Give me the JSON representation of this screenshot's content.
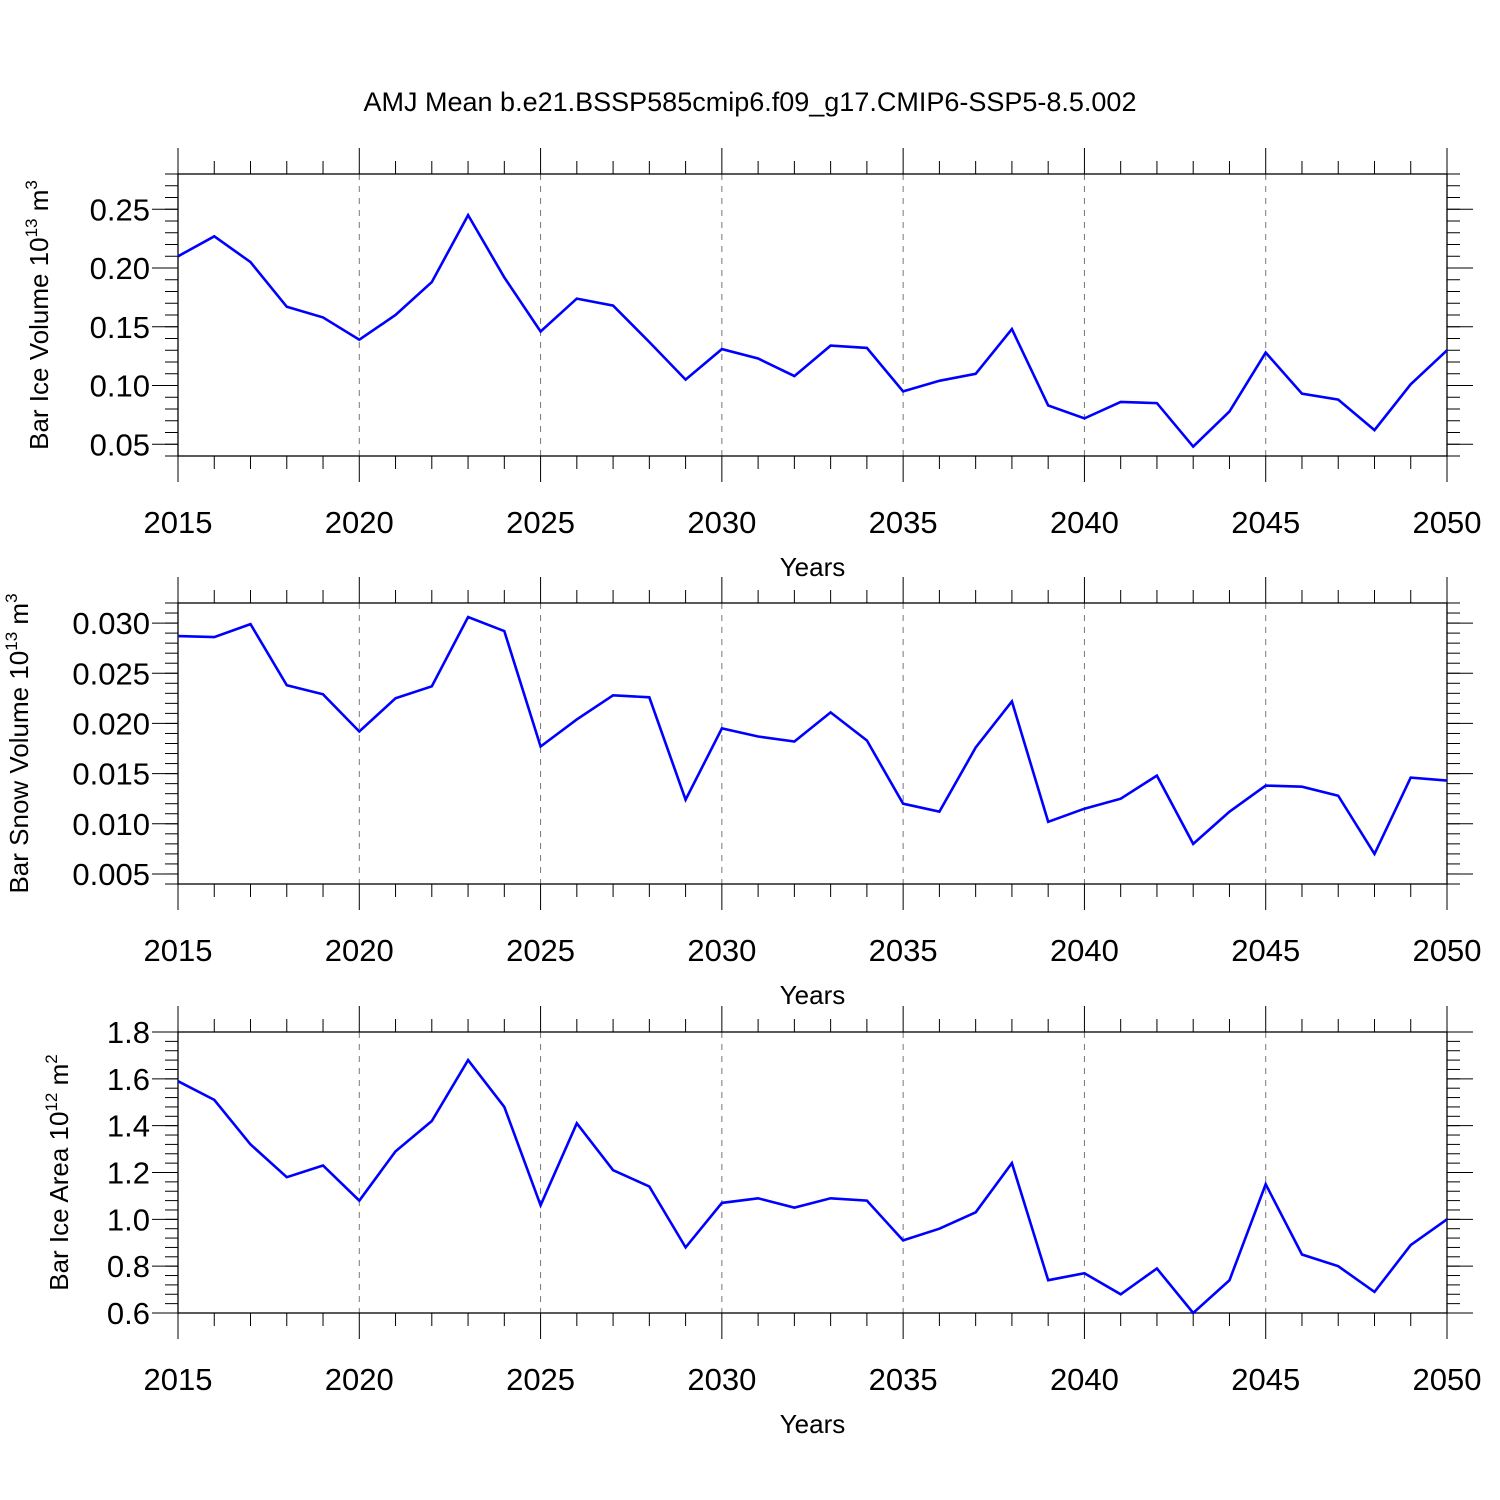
{
  "title": "AMJ Mean b.e21.BSSP585cmip6.f09_g17.CMIP6-SSP5-8.5.002",
  "colors": {
    "line": "#0000ff",
    "axis": "#000000",
    "grid": "#777777"
  },
  "chart_data": [
    {
      "type": "line",
      "xlabel": "Years",
      "ylabel": {
        "text": "Bar Ice Volume 10",
        "sup": "13",
        "unit": " m",
        "unit_sup": "3"
      },
      "xlim": [
        2015,
        2050
      ],
      "ylim": [
        0.04,
        0.28
      ],
      "xticks": [
        2015,
        2020,
        2025,
        2030,
        2035,
        2040,
        2045,
        2050
      ],
      "xtick_labels": [
        "2015",
        "2020",
        "2025",
        "2030",
        "2035",
        "2040",
        "2045",
        "2050"
      ],
      "yticks": [
        0.05,
        0.1,
        0.15,
        0.2,
        0.25
      ],
      "ytick_labels": [
        "0.05",
        "0.10",
        "0.15",
        "0.20",
        "0.25"
      ],
      "grid": "vertical dashed at major x ticks",
      "x": [
        2015,
        2016,
        2017,
        2018,
        2019,
        2020,
        2021,
        2022,
        2023,
        2024,
        2025,
        2026,
        2027,
        2028,
        2029,
        2030,
        2031,
        2032,
        2033,
        2034,
        2035,
        2036,
        2037,
        2038,
        2039,
        2040,
        2041,
        2042,
        2043,
        2044,
        2045,
        2046,
        2047,
        2048,
        2049,
        2050
      ],
      "values": [
        0.21,
        0.227,
        0.205,
        0.167,
        0.158,
        0.139,
        0.16,
        0.188,
        0.245,
        0.192,
        0.146,
        0.174,
        0.168,
        0.137,
        0.105,
        0.131,
        0.123,
        0.108,
        0.134,
        0.132,
        0.095,
        0.104,
        0.11,
        0.148,
        0.083,
        0.072,
        0.086,
        0.085,
        0.048,
        0.078,
        0.128,
        0.093,
        0.088,
        0.062,
        0.101,
        0.13
      ]
    },
    {
      "type": "line",
      "xlabel": "Years",
      "ylabel": {
        "text": "Bar Snow Volume 10",
        "sup": "13",
        "unit": " m",
        "unit_sup": "3"
      },
      "xlim": [
        2015,
        2050
      ],
      "ylim": [
        0.004,
        0.032
      ],
      "xticks": [
        2015,
        2020,
        2025,
        2030,
        2035,
        2040,
        2045,
        2050
      ],
      "xtick_labels": [
        "2015",
        "2020",
        "2025",
        "2030",
        "2035",
        "2040",
        "2045",
        "2050"
      ],
      "yticks": [
        0.005,
        0.01,
        0.015,
        0.02,
        0.025,
        0.03
      ],
      "ytick_labels": [
        "0.005",
        "0.010",
        "0.015",
        "0.020",
        "0.025",
        "0.030"
      ],
      "grid": "vertical dashed at major x ticks",
      "x": [
        2015,
        2016,
        2017,
        2018,
        2019,
        2020,
        2021,
        2022,
        2023,
        2024,
        2025,
        2026,
        2027,
        2028,
        2029,
        2030,
        2031,
        2032,
        2033,
        2034,
        2035,
        2036,
        2037,
        2038,
        2039,
        2040,
        2041,
        2042,
        2043,
        2044,
        2045,
        2046,
        2047,
        2048,
        2049,
        2050
      ],
      "values": [
        0.0287,
        0.0286,
        0.0299,
        0.0238,
        0.0229,
        0.0192,
        0.0225,
        0.0237,
        0.0306,
        0.0292,
        0.0177,
        0.0204,
        0.0228,
        0.0226,
        0.0124,
        0.0195,
        0.0187,
        0.0182,
        0.0211,
        0.0183,
        0.012,
        0.0112,
        0.0176,
        0.0222,
        0.0102,
        0.0115,
        0.0125,
        0.0148,
        0.008,
        0.0112,
        0.0138,
        0.0137,
        0.0128,
        0.007,
        0.0146,
        0.0143
      ]
    },
    {
      "type": "line",
      "xlabel": "Years",
      "ylabel": {
        "text": "Bar Ice Area 10",
        "sup": "12",
        "unit": " m",
        "unit_sup": "2"
      },
      "xlim": [
        2015,
        2050
      ],
      "ylim": [
        0.6,
        1.8
      ],
      "xticks": [
        2015,
        2020,
        2025,
        2030,
        2035,
        2040,
        2045,
        2050
      ],
      "xtick_labels": [
        "2015",
        "2020",
        "2025",
        "2030",
        "2035",
        "2040",
        "2045",
        "2050"
      ],
      "yticks": [
        0.6,
        0.8,
        1.0,
        1.2,
        1.4,
        1.6,
        1.8
      ],
      "ytick_labels": [
        "0.6",
        "0.8",
        "1.0",
        "1.2",
        "1.4",
        "1.6",
        "1.8"
      ],
      "grid": "vertical dashed at major x ticks",
      "x": [
        2015,
        2016,
        2017,
        2018,
        2019,
        2020,
        2021,
        2022,
        2023,
        2024,
        2025,
        2026,
        2027,
        2028,
        2029,
        2030,
        2031,
        2032,
        2033,
        2034,
        2035,
        2036,
        2037,
        2038,
        2039,
        2040,
        2041,
        2042,
        2043,
        2044,
        2045,
        2046,
        2047,
        2048,
        2049,
        2050
      ],
      "values": [
        1.59,
        1.51,
        1.32,
        1.18,
        1.23,
        1.08,
        1.29,
        1.42,
        1.68,
        1.48,
        1.06,
        1.41,
        1.21,
        1.14,
        0.88,
        1.07,
        1.09,
        1.05,
        1.09,
        1.08,
        0.91,
        0.96,
        1.03,
        1.24,
        0.74,
        0.77,
        0.68,
        0.79,
        0.6,
        0.74,
        1.15,
        0.85,
        0.8,
        0.69,
        0.89,
        1.0
      ]
    }
  ]
}
